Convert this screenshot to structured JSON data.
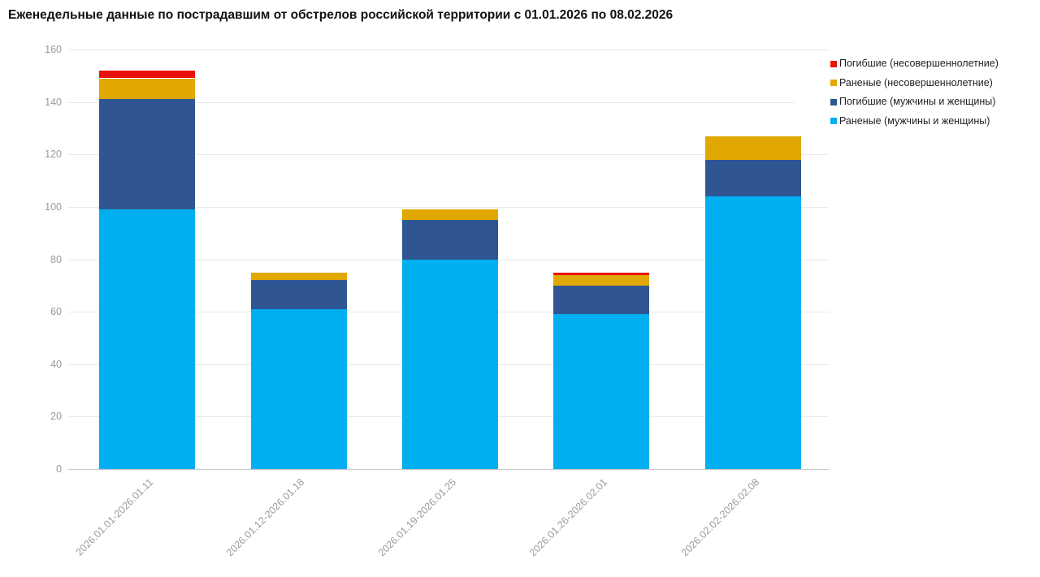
{
  "chart_data": {
    "type": "bar",
    "stacked": true,
    "title": "Еженедельные данные по пострадавшим от обстрелов российской территории с 01.01.2026 по 08.02.2026",
    "categories": [
      "2026.01.01-2026.01.11",
      "2026.01.12-2026.01.18",
      "2026.01.19-2026.01.25",
      "2026.01.26-2026.02.01",
      "2026.02.02-2026.02.08"
    ],
    "series": [
      {
        "name": "Погибшие (несовершеннолетние)",
        "color": "#ea130c",
        "values": [
          3,
          0,
          0,
          1,
          0
        ]
      },
      {
        "name": "Раненые (несовершеннолетние)",
        "color": "#e0a800",
        "values": [
          8,
          3,
          4,
          4,
          9
        ]
      },
      {
        "name": "Погибшие (мужчины и женщины)",
        "color": "#2f5593",
        "values": [
          42,
          11,
          15,
          11,
          14
        ]
      },
      {
        "name": "Раненые (мужчины и женщины)",
        "color": "#00aff0",
        "values": [
          99,
          61,
          80,
          59,
          104
        ]
      }
    ],
    "stack_order_bottom_to_top": [
      "Раненые (мужчины и женщины)",
      "Погибшие (мужчины и женщины)",
      "Раненые (несовершеннолетние)",
      "Погибшие (несовершеннолетние)"
    ],
    "xlabel": "",
    "ylabel": "",
    "ylim": [
      0,
      160
    ],
    "ytick_step": 20,
    "yticks": [
      0,
      20,
      40,
      60,
      80,
      100,
      120,
      140,
      160
    ],
    "grid": true,
    "legend_position": "top-right"
  },
  "palette": {
    "deaths_minors_red": "#ea130c",
    "injured_minors_yellow": "#e0a800",
    "deaths_adults_dark_blue": "#2f5593",
    "injured_adults_light_blue": "#00aff0",
    "axis_text_gray": "#9a9a9a",
    "gridline_gray": "#e9e9e9",
    "baseline_gray": "#c9c9c9",
    "title_color": "#111111",
    "legend_text_color": "#1e1e1e",
    "background": "#ffffff"
  }
}
